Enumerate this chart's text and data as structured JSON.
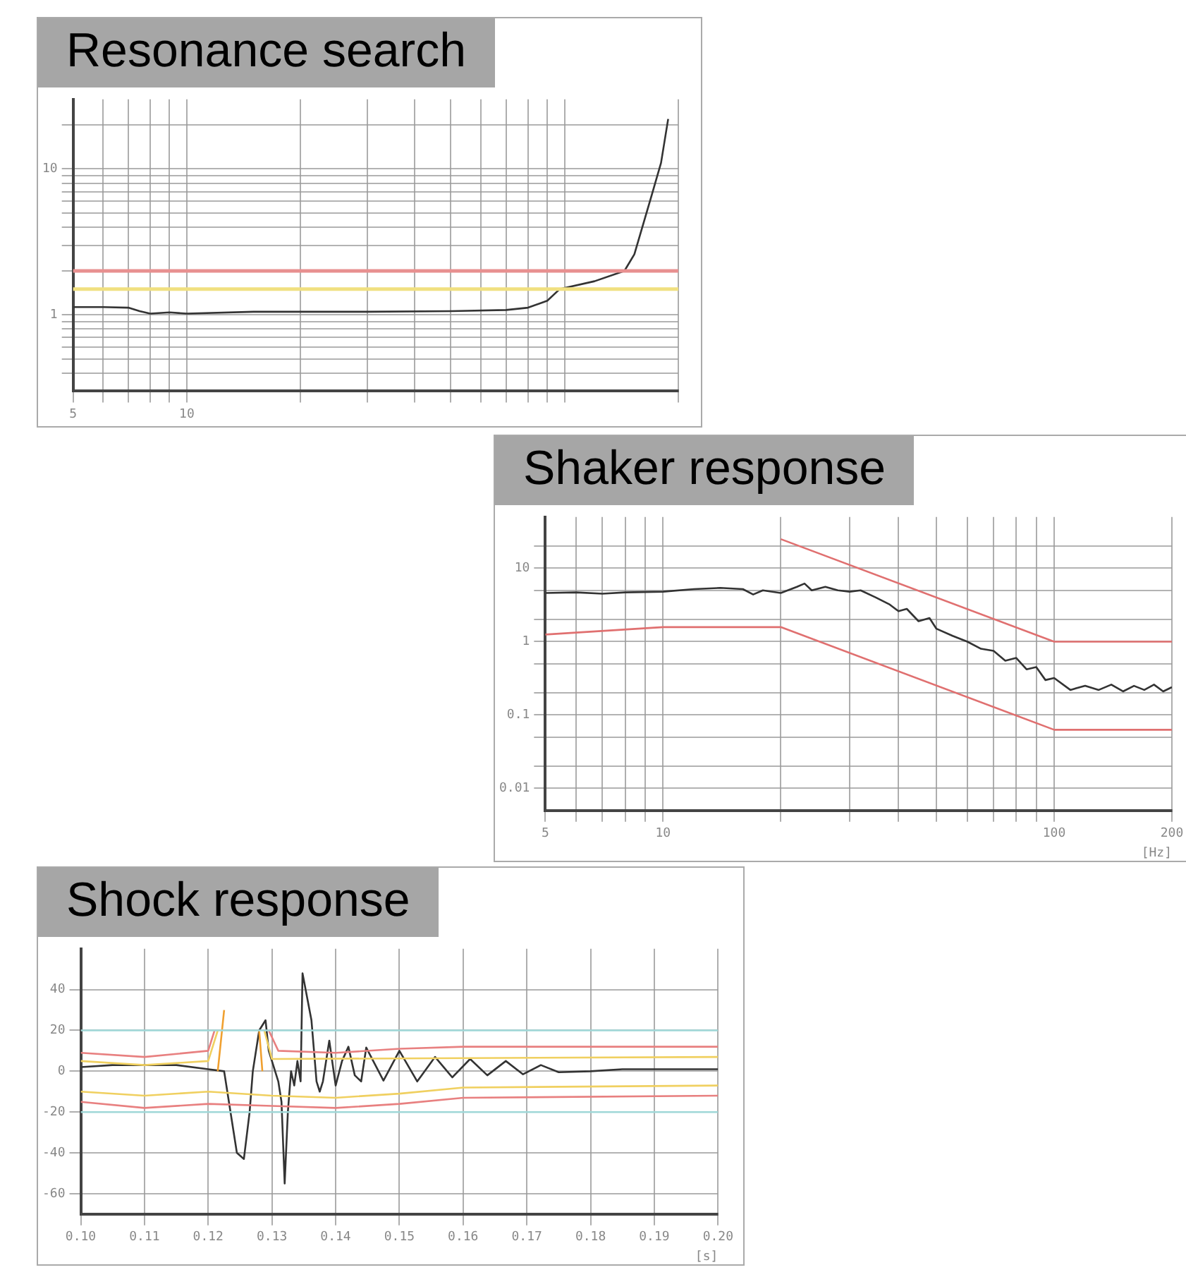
{
  "chart_data": [
    {
      "type": "line",
      "title": "Resonance search",
      "log": "xy",
      "grid": true,
      "marker": "none",
      "line_style": "solid",
      "xlim": [
        5,
        200
      ],
      "xticks": [
        5,
        {
          "value": 6,
          "label": null
        },
        {
          "value": 7,
          "label": null
        },
        {
          "value": 8,
          "label": null
        },
        {
          "value": 9,
          "label": null
        },
        10,
        {
          "value": 20,
          "label": null
        },
        {
          "value": 30,
          "label": null
        },
        {
          "value": 40,
          "label": null
        },
        {
          "value": 50,
          "label": null
        },
        {
          "value": 60,
          "label": null
        },
        {
          "value": 70,
          "label": null
        },
        {
          "value": 80,
          "label": null
        },
        {
          "value": 90,
          "label": null
        },
        {
          "value": 100,
          "label": null
        },
        {
          "value": 200,
          "label": null
        }
      ],
      "ylim": [
        0.3,
        30
      ],
      "yticks": [
        {
          "value": 0.4,
          "label": null
        },
        {
          "value": 0.5,
          "label": null
        },
        {
          "value": 0.6,
          "label": null
        },
        {
          "value": 0.7,
          "label": null
        },
        {
          "value": 0.8,
          "label": null
        },
        {
          "value": 0.9,
          "label": null
        },
        1,
        {
          "value": 2,
          "label": null
        },
        {
          "value": 3,
          "label": null
        },
        {
          "value": 4,
          "label": null
        },
        {
          "value": 5,
          "label": null
        },
        {
          "value": 6,
          "label": null
        },
        {
          "value": 7,
          "label": null
        },
        {
          "value": 8,
          "label": null
        },
        {
          "value": 9,
          "label": null
        },
        10,
        {
          "value": 20,
          "label": null
        }
      ],
      "ref_lines": [
        {
          "axis": "y",
          "value": 2,
          "color": "#e89090"
        },
        {
          "axis": "y",
          "value": 1.5,
          "color": "#f0e080"
        }
      ],
      "series": [
        {
          "color": "#333333",
          "x": [
            5,
            6,
            7,
            7.5,
            8,
            9,
            10,
            15,
            20,
            30,
            50,
            70,
            80,
            90,
            97,
            120,
            144,
            153,
            170,
            180,
            188
          ],
          "values": [
            1.13,
            1.13,
            1.12,
            1.06,
            1.02,
            1.04,
            1.02,
            1.05,
            1.05,
            1.05,
            1.06,
            1.08,
            1.12,
            1.25,
            1.5,
            1.7,
            2,
            2.6,
            6.6,
            11,
            22
          ]
        }
      ]
    },
    {
      "type": "line",
      "title": "Shaker response",
      "xlabel": "[Hz]",
      "log": "xy",
      "grid": true,
      "marker": "none",
      "line_style": "solid",
      "xlim": [
        5,
        200
      ],
      "xticks": [
        5,
        {
          "value": 6,
          "label": null
        },
        {
          "value": 7,
          "label": null
        },
        {
          "value": 8,
          "label": null
        },
        {
          "value": 9,
          "label": null
        },
        10,
        {
          "value": 20,
          "label": null
        },
        {
          "value": 30,
          "label": null
        },
        {
          "value": 40,
          "label": null
        },
        {
          "value": 50,
          "label": null
        },
        {
          "value": 60,
          "label": null
        },
        {
          "value": 70,
          "label": null
        },
        {
          "value": 80,
          "label": null
        },
        {
          "value": 90,
          "label": null
        },
        100,
        200
      ],
      "ylim": [
        0.005,
        50
      ],
      "yticks": [
        0.01,
        {
          "value": 0.02,
          "label": null
        },
        {
          "value": 0.05,
          "label": null
        },
        0.1,
        {
          "value": 0.2,
          "label": null
        },
        {
          "value": 0.5,
          "label": null
        },
        1,
        {
          "value": 2,
          "label": null
        },
        {
          "value": 5,
          "label": null
        },
        10,
        {
          "value": 20,
          "label": null
        }
      ],
      "series": [
        {
          "color": "#e07070",
          "x": [
            20,
            100,
            200
          ],
          "values": [
            25,
            1,
            1
          ]
        },
        {
          "color": "#e07070",
          "x": [
            5,
            10,
            20,
            100,
            200
          ],
          "values": [
            1.25,
            1.58,
            1.58,
            0.063,
            0.063
          ]
        },
        {
          "color": "#333333",
          "x": [
            5,
            6,
            7,
            8,
            10,
            12,
            14,
            16,
            17,
            18,
            20,
            22,
            23,
            24,
            26,
            28,
            30,
            32,
            35,
            38,
            40,
            42,
            45,
            48,
            50,
            55,
            60,
            65,
            70,
            75,
            80,
            85,
            90,
            95,
            100,
            110,
            120,
            130,
            140,
            150,
            160,
            170,
            180,
            190,
            200
          ],
          "values": [
            4.6,
            4.7,
            4.5,
            4.7,
            4.8,
            5.2,
            5.4,
            5.2,
            4.4,
            5,
            4.6,
            5.6,
            6.2,
            5,
            5.6,
            5,
            4.8,
            5,
            4,
            3.2,
            2.6,
            2.8,
            1.9,
            2.1,
            1.5,
            1.2,
            1,
            0.8,
            0.75,
            0.55,
            0.6,
            0.42,
            0.45,
            0.3,
            0.32,
            0.22,
            0.25,
            0.22,
            0.26,
            0.21,
            0.25,
            0.22,
            0.26,
            0.21,
            0.24
          ]
        }
      ]
    },
    {
      "type": "line",
      "title": "Shock response",
      "xlabel": "[s]",
      "grid": true,
      "marker": "none",
      "line_style": "solid",
      "xlim": [
        0.1,
        0.2
      ],
      "xticks": [
        {
          "value": 0.1,
          "label": "0.10"
        },
        0.11,
        0.12,
        0.13,
        0.14,
        0.15,
        0.16,
        0.17,
        0.18,
        0.19,
        {
          "value": 0.2,
          "label": "0.20"
        }
      ],
      "ylim": [
        -70,
        60
      ],
      "yticks": [
        -60,
        -40,
        -20,
        0,
        20,
        40
      ],
      "series": [
        {
          "color": "#a0d8d8",
          "x": [
            0.1,
            0.2
          ],
          "values": [
            20,
            20
          ]
        },
        {
          "color": "#a0d8d8",
          "x": [
            0.1,
            0.2
          ],
          "values": [
            -20,
            -20
          ]
        },
        {
          "color": "#e88080",
          "x": [
            0.1,
            0.11,
            0.12,
            0.121,
            0.1225,
            0.128,
            0.1295,
            0.131,
            0.14,
            0.15,
            0.16,
            0.2
          ],
          "values": [
            9,
            7,
            10,
            20,
            null,
            null,
            20,
            10,
            9,
            11,
            12,
            12
          ]
        },
        {
          "color": "#e88080",
          "x": [
            0.1,
            0.11,
            0.12,
            0.13,
            0.14,
            0.15,
            0.16,
            0.2
          ],
          "values": [
            -15,
            -18,
            -16,
            -17,
            -18,
            -16,
            -13,
            -12
          ]
        },
        {
          "color": "#f0d060",
          "x": [
            0.1,
            0.11,
            0.12,
            0.1215,
            0.1232,
            0.1275,
            0.1288,
            0.13,
            0.2
          ],
          "values": [
            5,
            3,
            5,
            20,
            null,
            null,
            20,
            6,
            7
          ]
        },
        {
          "color": "#f0d060",
          "x": [
            0.1,
            0.11,
            0.12,
            0.13,
            0.14,
            0.15,
            0.16,
            0.2
          ],
          "values": [
            -10,
            -12,
            -10,
            -12,
            -13,
            -11,
            -8,
            -7
          ]
        },
        {
          "color": "#f0a030",
          "x": [
            0.1215,
            0.1225,
            0.1235,
            0.127,
            0.128,
            0.1285
          ],
          "values": [
            0,
            30,
            null,
            null,
            20,
            0
          ]
        },
        {
          "color": "#333333",
          "x": [
            0.1,
            0.105,
            0.11,
            0.115,
            0.12,
            0.1225,
            0.1235,
            0.1245,
            0.1256,
            0.1265,
            0.127,
            0.128,
            0.129,
            0.1295,
            0.131,
            0.1315,
            0.132,
            0.1325,
            0.133,
            0.1335,
            0.134,
            0.1345,
            0.1348,
            0.1362,
            0.137,
            0.1375,
            0.138,
            0.139,
            0.14,
            0.141,
            0.142,
            0.143,
            0.144,
            0.1448,
            0.1475,
            0.15,
            0.1528,
            0.1556,
            0.1583,
            0.1611,
            0.1638,
            0.1667,
            0.1694,
            0.1722,
            0.175,
            0.18,
            0.185,
            0.19,
            0.195,
            0.2
          ],
          "values": [
            2,
            3,
            3,
            3,
            1,
            0,
            -20,
            -40,
            -43,
            -20,
            0,
            20,
            25,
            10,
            -5,
            -15,
            -55,
            -20,
            0,
            -7,
            5,
            -5,
            48,
            25,
            -5,
            -10,
            -5,
            15,
            -7,
            5,
            12,
            -2,
            -5,
            11.6,
            -4.6,
            10,
            -5,
            7,
            -3,
            6,
            -2,
            5,
            -1.5,
            3,
            -0.5,
            0,
            1,
            1,
            1,
            1
          ]
        }
      ]
    }
  ]
}
